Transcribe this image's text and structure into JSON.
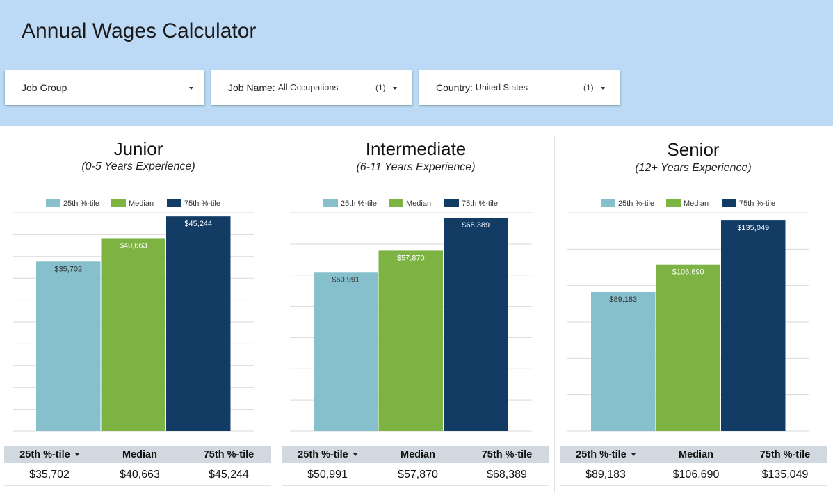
{
  "header": {
    "title": "Annual Wages Calculator",
    "filters": [
      {
        "label": "Job Group",
        "value": "",
        "count": ""
      },
      {
        "label": "Job Name:",
        "value": "All Occupations",
        "count": "(1)"
      },
      {
        "label": "Country:",
        "value": "United States",
        "count": "(1)"
      }
    ]
  },
  "colors": {
    "p25": "#86c0cc",
    "median": "#7cb342",
    "p75": "#133c65",
    "header_bg": "#bcdaf5"
  },
  "legend": [
    "25th %-tile",
    "Median",
    "75th %-tile"
  ],
  "table_headers": [
    "25th %-tile",
    "Median",
    "75th %-tile"
  ],
  "panels": [
    {
      "title": "Junior",
      "subtitle": "(0-5 Years Experience)",
      "table_values": [
        "$35,702",
        "$40,663",
        "$45,244"
      ]
    },
    {
      "title": "Intermediate",
      "subtitle": "(6-11 Years Experience)",
      "table_values": [
        "$50,991",
        "$57,870",
        "$68,389"
      ]
    },
    {
      "title": "Senior",
      "subtitle": "(12+ Years Experience)",
      "table_values": [
        "$89,183",
        "$106,690",
        "$135,049"
      ]
    }
  ],
  "chart_data": [
    {
      "type": "bar",
      "title": "Junior",
      "categories": [
        "25th %-tile",
        "Median",
        "75th %-tile"
      ],
      "values": [
        35702,
        40663,
        45244
      ],
      "labels": [
        "$35,702",
        "$40,663",
        "$45,244"
      ],
      "ylim": [
        0,
        46000
      ],
      "gridlines": 10,
      "legend": "top"
    },
    {
      "type": "bar",
      "title": "Intermediate",
      "categories": [
        "25th %-tile",
        "Median",
        "75th %-tile"
      ],
      "values": [
        50991,
        57870,
        68389
      ],
      "labels": [
        "$50,991",
        "$57,870",
        "$68,389"
      ],
      "ylim": [
        0,
        70000
      ],
      "gridlines": 7,
      "legend": "top"
    },
    {
      "type": "bar",
      "title": "Senior",
      "categories": [
        "25th %-tile",
        "Median",
        "75th %-tile"
      ],
      "values": [
        89183,
        106690,
        135049
      ],
      "labels": [
        "$89,183",
        "$106,690",
        "$135,049"
      ],
      "ylim": [
        0,
        140000
      ],
      "gridlines": 6,
      "legend": "top"
    }
  ]
}
